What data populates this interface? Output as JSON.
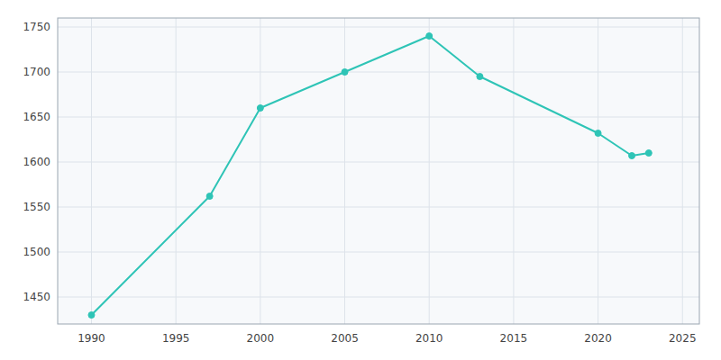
{
  "chart_data": {
    "type": "line",
    "x": [
      1990,
      1997,
      2000,
      2005,
      2010,
      2013,
      2020,
      2022,
      2023
    ],
    "values": [
      1430,
      1562,
      1660,
      1700,
      1740,
      1695,
      1632,
      1607,
      1610
    ],
    "color": "#2ec4b6",
    "marker": "circle",
    "xlim": [
      1988,
      2026
    ],
    "ylim": [
      1420,
      1760
    ],
    "xticks": [
      1990,
      1995,
      2000,
      2005,
      2010,
      2015,
      2020,
      2025
    ],
    "yticks": [
      1450,
      1500,
      1550,
      1600,
      1650,
      1700,
      1750
    ],
    "grid": true
  }
}
